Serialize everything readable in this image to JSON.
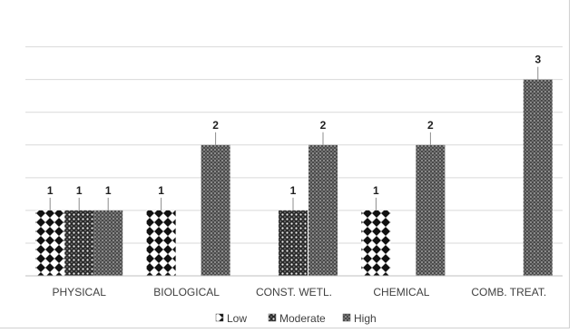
{
  "chart_data": {
    "type": "bar",
    "categories": [
      "PHYSICAL",
      "BIOLOGICAL",
      "CONST. WETL.",
      "CHEMICAL",
      "COMB. TREAT."
    ],
    "series": [
      {
        "name": "Low",
        "values": [
          1,
          1,
          null,
          1,
          null
        ]
      },
      {
        "name": "Moderate",
        "values": [
          1,
          null,
          1,
          null,
          null
        ]
      },
      {
        "name": "High",
        "values": [
          1,
          2,
          2,
          2,
          3
        ]
      }
    ],
    "data_labels": [
      [
        "1",
        "1",
        null,
        "1",
        null
      ],
      [
        "1",
        null,
        "1",
        null,
        null
      ],
      [
        "1",
        "2",
        "2",
        "2",
        "3"
      ]
    ],
    "ylim": [
      0,
      3.8
    ],
    "grid": true,
    "legend": "bottom",
    "title": "",
    "xlabel": "",
    "ylabel": ""
  },
  "legend": {
    "items": [
      {
        "label": "Low",
        "symbol": "⧗"
      },
      {
        "label": "Moderate",
        "symbol": "⧉"
      },
      {
        "label": "High",
        "symbol": "▩"
      }
    ]
  }
}
